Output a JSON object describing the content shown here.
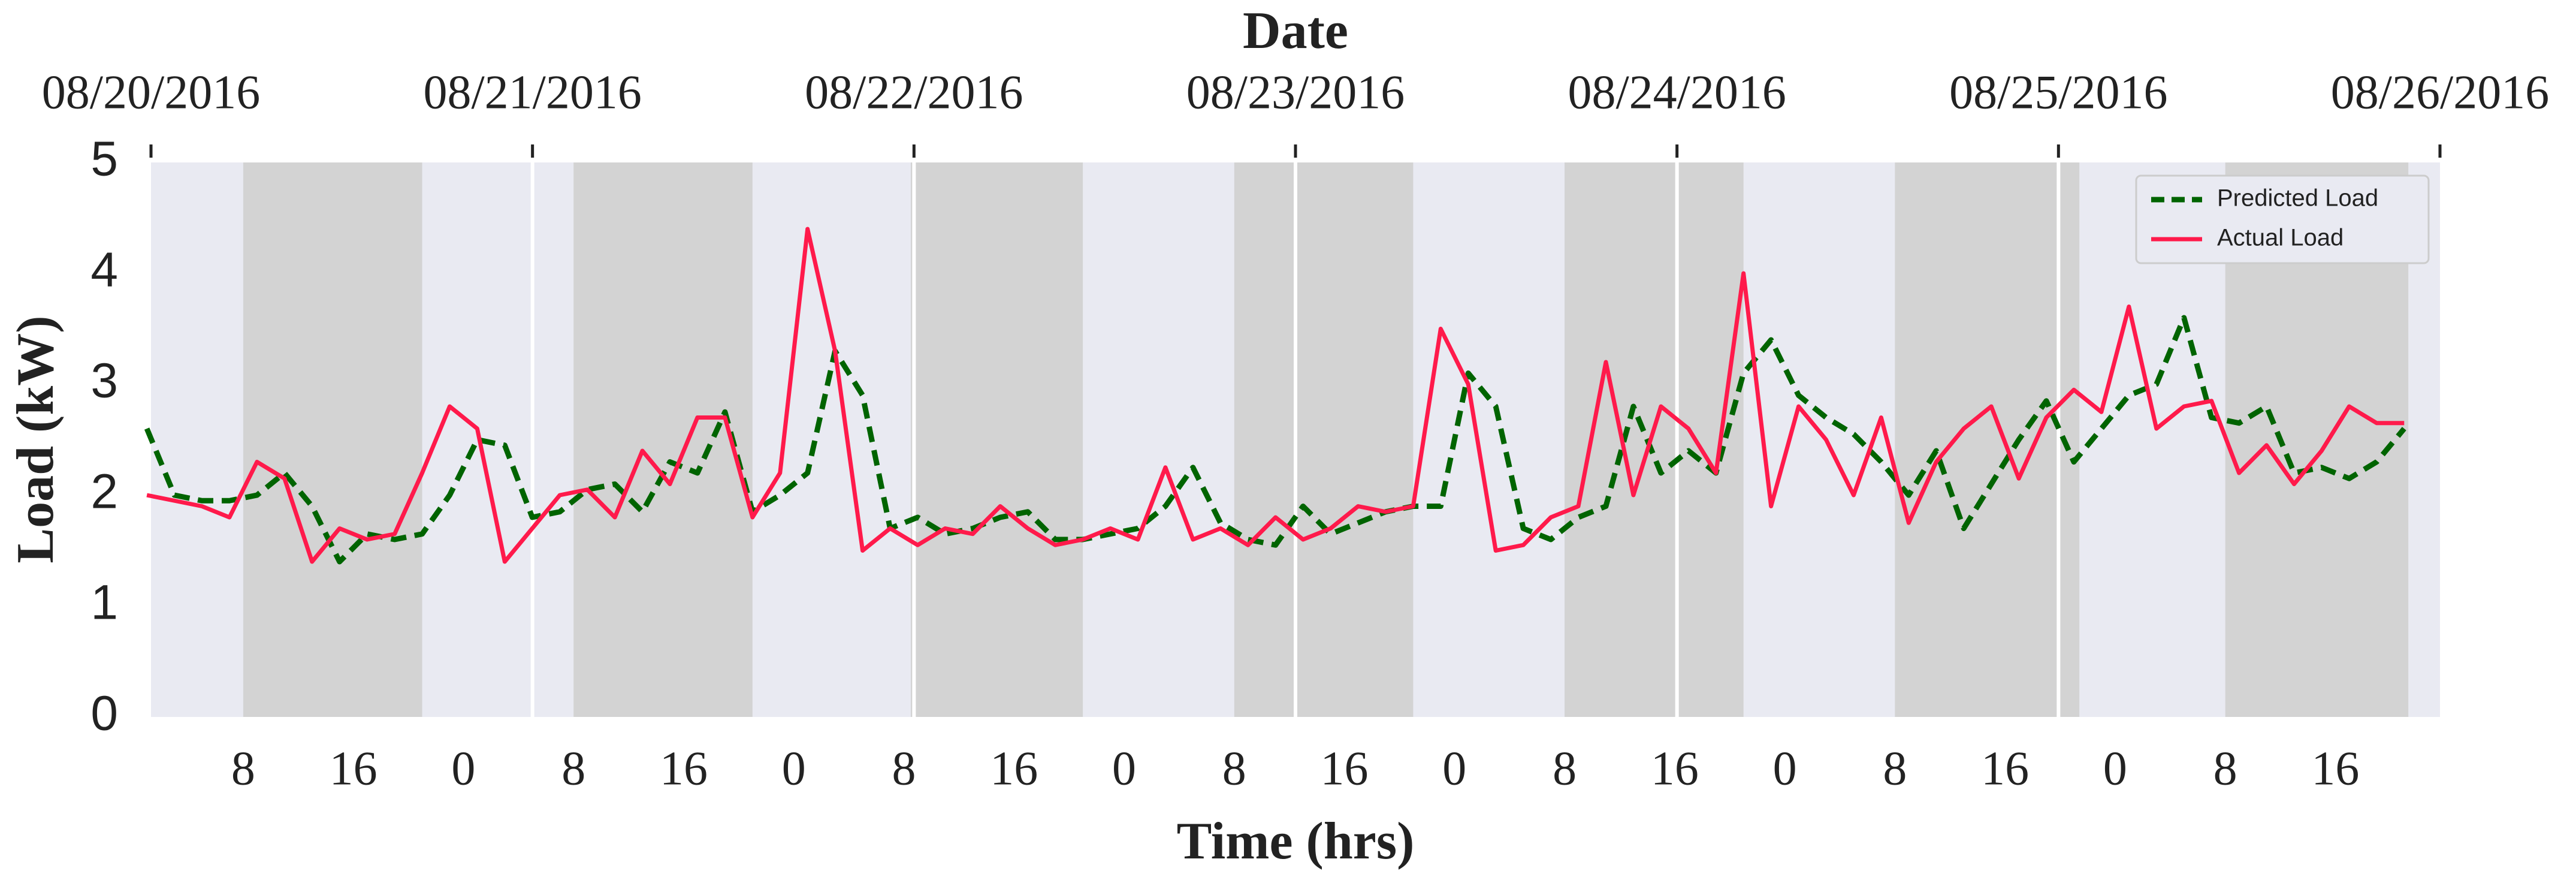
{
  "chart_data": {
    "type": "line",
    "title": "Date",
    "xlabel": "Time (hrs)",
    "ylabel": "Load (kW)",
    "x": [
      1,
      3,
      5,
      7,
      9,
      11,
      13,
      15,
      17,
      19,
      21,
      23,
      25,
      27,
      29,
      31,
      33,
      35,
      37,
      39,
      41,
      43,
      45,
      47,
      49,
      51,
      53,
      55,
      57,
      59,
      61,
      63,
      65,
      67,
      69,
      71,
      73,
      75,
      77,
      79,
      81,
      83,
      85,
      87,
      89,
      91,
      93,
      95,
      97,
      99,
      101,
      103,
      105,
      107,
      109,
      111,
      113,
      115,
      117,
      119,
      121,
      123,
      125,
      127,
      129,
      131,
      133,
      135,
      137,
      139,
      141,
      143,
      145,
      147,
      149,
      151,
      153,
      155,
      157,
      159,
      161,
      163,
      165
    ],
    "series": [
      {
        "name": "Predicted Load",
        "color": "#006400",
        "dash": true,
        "values": [
          2.6,
          2.0,
          1.95,
          1.95,
          2.0,
          2.2,
          1.9,
          1.4,
          1.65,
          1.6,
          1.65,
          2.0,
          2.5,
          2.45,
          1.8,
          1.85,
          2.05,
          2.1,
          1.85,
          2.3,
          2.2,
          2.75,
          1.85,
          2.0,
          2.2,
          3.3,
          2.9,
          1.7,
          1.8,
          1.65,
          1.7,
          1.8,
          1.85,
          1.6,
          1.6,
          1.65,
          1.7,
          1.9,
          2.25,
          1.75,
          1.6,
          1.55,
          1.9,
          1.65,
          1.75,
          1.85,
          1.9,
          1.9,
          3.1,
          2.8,
          1.7,
          1.6,
          1.8,
          1.9,
          2.8,
          2.2,
          2.4,
          2.2,
          3.1,
          3.4,
          2.9,
          2.7,
          2.55,
          2.3,
          2.0,
          2.4,
          1.7,
          2.1,
          2.5,
          2.85,
          2.3,
          2.6,
          2.9,
          3.0,
          3.6,
          2.7,
          2.65,
          2.8,
          2.2,
          2.25,
          2.15,
          2.3,
          2.6
        ]
      },
      {
        "name": "Actual Load",
        "color": "#ff1a4b",
        "dash": false,
        "values": [
          2.0,
          1.95,
          1.9,
          1.8,
          2.3,
          2.15,
          1.4,
          1.7,
          1.6,
          1.65,
          2.2,
          2.8,
          2.6,
          1.4,
          1.7,
          2.0,
          2.05,
          1.8,
          2.4,
          2.1,
          2.7,
          2.7,
          1.8,
          2.2,
          4.4,
          3.3,
          1.5,
          1.7,
          1.55,
          1.7,
          1.65,
          1.9,
          1.7,
          1.55,
          1.6,
          1.7,
          1.6,
          2.25,
          1.6,
          1.7,
          1.55,
          1.8,
          1.6,
          1.7,
          1.9,
          1.85,
          1.9,
          3.5,
          3.0,
          1.5,
          1.55,
          1.8,
          1.9,
          3.2,
          2.0,
          2.8,
          2.6,
          2.2,
          4.0,
          1.9,
          2.8,
          2.5,
          2.0,
          2.7,
          1.75,
          2.3,
          2.6,
          2.8,
          2.15,
          2.7,
          2.95,
          2.75,
          3.7,
          2.6,
          2.8,
          2.85,
          2.2,
          2.45,
          2.1,
          2.4,
          2.8,
          2.65,
          2.65
        ]
      }
    ],
    "xlim": [
      1.3,
      167.6
    ],
    "xticks": [
      8,
      16,
      {
        "value": 24,
        "label": "0"
      },
      {
        "value": 32,
        "label": "8"
      },
      {
        "value": 40,
        "label": "16"
      },
      {
        "value": 48,
        "label": "0"
      },
      {
        "value": 56,
        "label": "8"
      },
      {
        "value": 64,
        "label": "16"
      },
      {
        "value": 72,
        "label": "0"
      },
      {
        "value": 80,
        "label": "8"
      },
      {
        "value": 88,
        "label": "16"
      },
      {
        "value": 96,
        "label": "0"
      },
      {
        "value": 104,
        "label": "8"
      },
      {
        "value": 112,
        "label": "16"
      },
      {
        "value": 120,
        "label": "0"
      },
      {
        "value": 128,
        "label": "8"
      },
      {
        "value": 136,
        "label": "16"
      },
      {
        "value": 144,
        "label": "0"
      },
      {
        "value": 152,
        "label": "8"
      },
      {
        "value": 160,
        "label": "16"
      }
    ],
    "x2lim": [
      0,
      6
    ],
    "x2ticks": [
      {
        "value": 0,
        "label": "08/20/2016"
      },
      {
        "value": 1,
        "label": "08/21/2016"
      },
      {
        "value": 2,
        "label": "08/22/2016"
      },
      {
        "value": 3,
        "label": "08/23/2016"
      },
      {
        "value": 4,
        "label": "08/24/2016"
      },
      {
        "value": 5,
        "label": "08/25/2016"
      },
      {
        "value": 6,
        "label": "08/26/2016"
      }
    ],
    "x2grid": true,
    "ylim": [
      0,
      5
    ],
    "yticks": [
      0,
      1,
      2,
      3,
      4,
      5
    ],
    "shaded_regions": [
      [
        8,
        21
      ],
      [
        32,
        45
      ],
      [
        56.5,
        69
      ],
      [
        80,
        93
      ],
      [
        104,
        117
      ],
      [
        128,
        141.4
      ],
      [
        152,
        165.3
      ]
    ],
    "shade_color": "#d3d3d3",
    "background": "#e9eaf2",
    "legend": "upper right"
  }
}
